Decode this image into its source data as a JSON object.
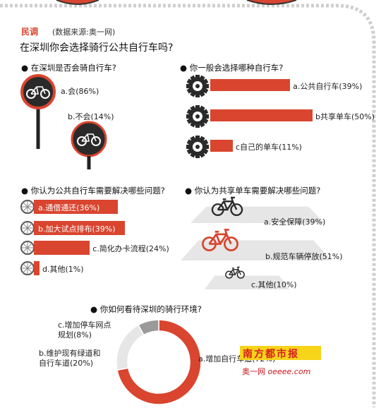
{
  "tag": "民调",
  "source": "(数据来源:奥一网)",
  "title": "在深圳你会选择骑行公共自行车吗?",
  "colors": {
    "accent": "#d9452f",
    "gray": "#9a9a9a",
    "light": "#e6e6e6",
    "dark": "#2a2a2a"
  },
  "logo": {
    "text": "南方都市报",
    "site": "奥一网",
    "url_text": "oeeee.com"
  },
  "chart_data": [
    {
      "type": "bar",
      "question": "在深圳是否会骑自行车?",
      "categories": [
        "a.会",
        "b.不会"
      ],
      "values": [
        86,
        14
      ],
      "labels": [
        "a.会(86%)",
        "b.不会(14%)"
      ],
      "unit": "%"
    },
    {
      "type": "bar",
      "question": "你一般会选择哪种自行车?",
      "categories": [
        "a.公共自行车",
        "b共享单车",
        "c自己的单车"
      ],
      "values": [
        39,
        50,
        11
      ],
      "labels": [
        "a.公共自行车(39%)",
        "b共享单车(50%)",
        "c自己的单车(11%)"
      ],
      "unit": "%"
    },
    {
      "type": "bar",
      "question": "你认为公共自行车需要解决哪些问题?",
      "categories": [
        "a.通借通还",
        "b.加大试点排布",
        "c.简化办卡流程",
        "d.其他"
      ],
      "values": [
        36,
        39,
        24,
        1
      ],
      "labels": [
        "a.通借通还(36%)",
        "b.加大试点排布(39%)",
        "c.简化办卡流程(24%)",
        "d.其他(1%)"
      ],
      "unit": "%"
    },
    {
      "type": "bar",
      "question": "你认为共享单车需要解决哪些问题?",
      "categories": [
        "a.安全保障",
        "b.规范车辆停放",
        "c.其他"
      ],
      "values": [
        39,
        51,
        10
      ],
      "labels": [
        "a.安全保障(39%)",
        "b.规范车辆停放(51%)",
        "c.其他(10%)"
      ],
      "unit": "%"
    },
    {
      "type": "pie",
      "question": "你如何看待深圳的骑行环境?",
      "categories": [
        "a.增加自行车道",
        "b.维护现有绿道和自行车道",
        "c.增加停车网点规划"
      ],
      "values": [
        72,
        20,
        8
      ],
      "labels": [
        "a.增加自行车道(72%)",
        "b.维护现有绿道和\n自行车道(20%)",
        "c.增加停车网点\n规划(8%)"
      ],
      "unit": "%"
    }
  ]
}
